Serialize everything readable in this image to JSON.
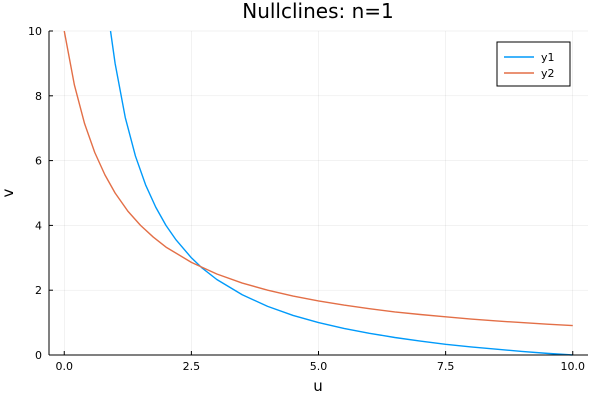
{
  "chart_data": {
    "type": "line",
    "title": "Nullclines: n=1",
    "xlabel": "u",
    "ylabel": "v",
    "xlim": [
      -0.3,
      10.3
    ],
    "ylim": [
      0,
      10
    ],
    "xticks": [
      0,
      2.5,
      5,
      7.5,
      10
    ],
    "xtick_labels": [
      "0.0",
      "2.5",
      "5.0",
      "7.5",
      "10.0"
    ],
    "yticks": [
      0,
      2,
      4,
      6,
      8,
      10
    ],
    "ytick_labels": [
      "0",
      "2",
      "4",
      "6",
      "8",
      "10"
    ],
    "grid": true,
    "legend_position": "top-right",
    "series": [
      {
        "name": "y1",
        "color": "#009AFA",
        "x": [
          0.91,
          1.0,
          1.2,
          1.4,
          1.6,
          1.8,
          2.0,
          2.2,
          2.5,
          2.7,
          3.0,
          3.5,
          4.0,
          4.5,
          5.0,
          5.5,
          6.0,
          6.5,
          7.0,
          7.5,
          8.0,
          8.5,
          9.0,
          9.5,
          10.0
        ],
        "y": [
          10.0,
          9.0,
          7.33,
          6.14,
          5.25,
          4.56,
          4.0,
          3.55,
          3.0,
          2.7,
          2.33,
          1.86,
          1.5,
          1.22,
          1.0,
          0.82,
          0.67,
          0.54,
          0.43,
          0.33,
          0.25,
          0.18,
          0.11,
          0.05,
          0.0
        ]
      },
      {
        "name": "y2",
        "color": "#E36F47",
        "x": [
          0.0,
          0.2,
          0.4,
          0.6,
          0.8,
          1.0,
          1.25,
          1.5,
          1.75,
          2.0,
          2.5,
          3.0,
          3.5,
          4.0,
          4.5,
          5.0,
          5.5,
          6.0,
          6.5,
          7.0,
          7.5,
          8.0,
          8.5,
          9.0,
          9.5,
          10.0
        ],
        "y": [
          10.0,
          8.33,
          7.14,
          6.25,
          5.56,
          5.0,
          4.44,
          4.0,
          3.64,
          3.33,
          2.86,
          2.5,
          2.22,
          2.0,
          1.82,
          1.67,
          1.54,
          1.43,
          1.33,
          1.25,
          1.18,
          1.11,
          1.05,
          1.0,
          0.95,
          0.91
        ]
      }
    ]
  }
}
